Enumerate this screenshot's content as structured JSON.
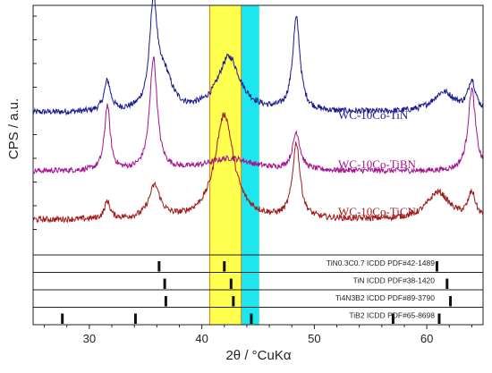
{
  "chart_data": {
    "type": "line",
    "title": "",
    "xlabel": "2θ / °CuKα",
    "ylabel": "CPS / a.u.",
    "xlim": [
      25,
      65
    ],
    "x_ticks": [
      30,
      40,
      50,
      60
    ],
    "highlight_bands": [
      {
        "x0": 40.7,
        "x1": 43.5,
        "color": "#ffff4d"
      },
      {
        "x0": 43.5,
        "x1": 45.1,
        "color": "#1ee6ee"
      }
    ],
    "series": [
      {
        "name": "WC-10Co-TiN",
        "color": "#1a1a8c",
        "baseline": 0.57,
        "noise": 0.012,
        "peaks": [
          {
            "x": 31.6,
            "h": 0.12,
            "w": 0.35
          },
          {
            "x": 35.7,
            "h": 0.42,
            "w": 0.4
          },
          {
            "x": 36.7,
            "h": 0.13,
            "w": 0.8
          },
          {
            "x": 42.4,
            "h": 0.22,
            "w": 1.2
          },
          {
            "x": 48.4,
            "h": 0.37,
            "w": 0.4
          },
          {
            "x": 61.5,
            "h": 0.08,
            "w": 1.2
          },
          {
            "x": 64.0,
            "h": 0.12,
            "w": 0.4
          }
        ]
      },
      {
        "name": "WC-10Co-TiBN",
        "color": "#a3148e",
        "baseline": 0.335,
        "noise": 0.011,
        "peaks": [
          {
            "x": 31.6,
            "h": 0.26,
            "w": 0.3
          },
          {
            "x": 35.7,
            "h": 0.45,
            "w": 0.4
          },
          {
            "x": 42.5,
            "h": 0.05,
            "w": 2.5
          },
          {
            "x": 48.4,
            "h": 0.15,
            "w": 0.4
          },
          {
            "x": 64.0,
            "h": 0.33,
            "w": 0.4
          }
        ]
      },
      {
        "name": "WC-10Co-TiCN",
        "color": "#a01a1a",
        "baseline": 0.14,
        "noise": 0.012,
        "peaks": [
          {
            "x": 31.6,
            "h": 0.07,
            "w": 0.3
          },
          {
            "x": 35.8,
            "h": 0.13,
            "w": 0.6
          },
          {
            "x": 42.0,
            "h": 0.42,
            "w": 1.0
          },
          {
            "x": 48.4,
            "h": 0.3,
            "w": 0.4
          },
          {
            "x": 61.0,
            "h": 0.11,
            "w": 1.2
          },
          {
            "x": 64.0,
            "h": 0.1,
            "w": 0.4
          }
        ]
      }
    ],
    "reference_patterns": [
      {
        "label": "TiN0.3C0.7 ICDD PDF#42-1489",
        "lines": [
          36.2,
          42.0,
          60.9
        ]
      },
      {
        "label": "TiN ICDD PDF#38-1420",
        "lines": [
          36.7,
          42.6,
          61.8
        ]
      },
      {
        "label": "Ti4N3B2 ICDD PDF#89-3790",
        "lines": [
          36.8,
          42.8,
          62.1
        ]
      },
      {
        "label": "TiB2 ICDD PDF#65-8698",
        "lines": [
          27.6,
          34.1,
          44.4,
          57.0,
          61.1
        ]
      }
    ]
  }
}
